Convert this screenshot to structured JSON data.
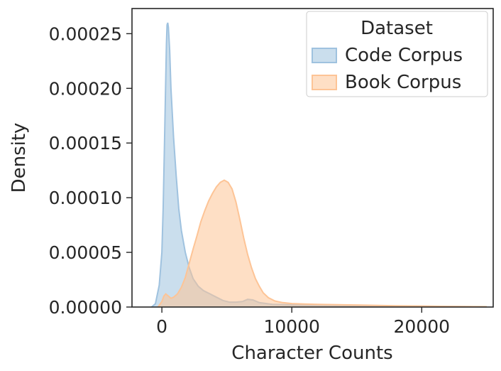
{
  "chart_data": {
    "type": "area",
    "xlabel": "Character Counts",
    "ylabel": "Density",
    "xlim": [
      -2300,
      25500
    ],
    "ylim": [
      0,
      0.000273
    ],
    "x_ticks": [
      0,
      10000,
      20000
    ],
    "x_tick_labels": [
      "0",
      "10000",
      "20000"
    ],
    "y_ticks": [
      0,
      5e-05,
      0.0001,
      0.00015,
      0.0002,
      0.00025
    ],
    "y_tick_labels": [
      "0.00000",
      "0.00005",
      "0.00010",
      "0.00015",
      "0.00020",
      "0.00025"
    ],
    "grid": false,
    "legend": {
      "title": "Dataset",
      "position": "top-right"
    },
    "series": [
      {
        "name": "Code Corpus",
        "color": "#9fc2df",
        "points": [
          [
            -800,
            0
          ],
          [
            -500,
            3e-06
          ],
          [
            -200,
            2e-05
          ],
          [
            0,
            5e-05
          ],
          [
            100,
            9e-05
          ],
          [
            200,
            0.00015
          ],
          [
            300,
            0.00021
          ],
          [
            350,
            0.00024
          ],
          [
            400,
            0.000258
          ],
          [
            450,
            0.00026
          ],
          [
            500,
            0.000256
          ],
          [
            600,
            0.000235
          ],
          [
            700,
            0.0002
          ],
          [
            900,
            0.000155
          ],
          [
            1100,
            0.00012
          ],
          [
            1300,
            9e-05
          ],
          [
            1500,
            7e-05
          ],
          [
            1800,
            5e-05
          ],
          [
            2100,
            3.6e-05
          ],
          [
            2400,
            2.6e-05
          ],
          [
            2800,
            1.9e-05
          ],
          [
            3200,
            1.5e-05
          ],
          [
            3700,
            1.2e-05
          ],
          [
            4200,
            9e-06
          ],
          [
            4700,
            6e-06
          ],
          [
            5200,
            4.5e-06
          ],
          [
            5700,
            4.5e-06
          ],
          [
            6200,
            5e-06
          ],
          [
            6600,
            7e-06
          ],
          [
            7000,
            6.5e-06
          ],
          [
            7500,
            4e-06
          ],
          [
            8500,
            2.5e-06
          ],
          [
            10000,
            2e-06
          ],
          [
            12000,
            1.8e-06
          ],
          [
            14000,
            1.5e-06
          ],
          [
            16000,
            1.2e-06
          ],
          [
            18000,
            1e-06
          ],
          [
            20000,
            8e-07
          ],
          [
            22000,
            5e-07
          ],
          [
            24000,
            3e-07
          ],
          [
            25000,
            2e-07
          ]
        ]
      },
      {
        "name": "Book Corpus",
        "color": "#fdc496",
        "points": [
          [
            -300,
            0
          ],
          [
            0,
            5e-06
          ],
          [
            150,
            1e-05
          ],
          [
            300,
            1.2e-05
          ],
          [
            500,
            1e-05
          ],
          [
            700,
            8e-06
          ],
          [
            900,
            9e-06
          ],
          [
            1200,
            1.2e-05
          ],
          [
            1500,
            1.8e-05
          ],
          [
            1800,
            2.7e-05
          ],
          [
            2100,
            4e-05
          ],
          [
            2400,
            5.3e-05
          ],
          [
            2700,
            6.5e-05
          ],
          [
            3000,
            7.8e-05
          ],
          [
            3300,
            8.8e-05
          ],
          [
            3600,
            9.7e-05
          ],
          [
            3900,
            0.000104
          ],
          [
            4200,
            0.00011
          ],
          [
            4500,
            0.000114
          ],
          [
            4800,
            0.000116
          ],
          [
            5100,
            0.000114
          ],
          [
            5400,
            0.000108
          ],
          [
            5700,
            9.6e-05
          ],
          [
            6000,
            8e-05
          ],
          [
            6300,
            6.3e-05
          ],
          [
            6600,
            4.8e-05
          ],
          [
            6900,
            3.6e-05
          ],
          [
            7200,
            2.6e-05
          ],
          [
            7500,
            1.9e-05
          ],
          [
            7800,
            1.3e-05
          ],
          [
            8200,
            8.5e-06
          ],
          [
            8700,
            5.5e-06
          ],
          [
            9300,
            4e-06
          ],
          [
            10000,
            3.2e-06
          ],
          [
            11000,
            2.8e-06
          ],
          [
            12000,
            2.5e-06
          ],
          [
            14000,
            2e-06
          ],
          [
            16000,
            1.6e-06
          ],
          [
            18000,
            1.2e-06
          ],
          [
            20000,
            9e-07
          ],
          [
            22000,
            6e-07
          ],
          [
            24000,
            4e-07
          ],
          [
            25000,
            3e-07
          ]
        ]
      }
    ]
  }
}
